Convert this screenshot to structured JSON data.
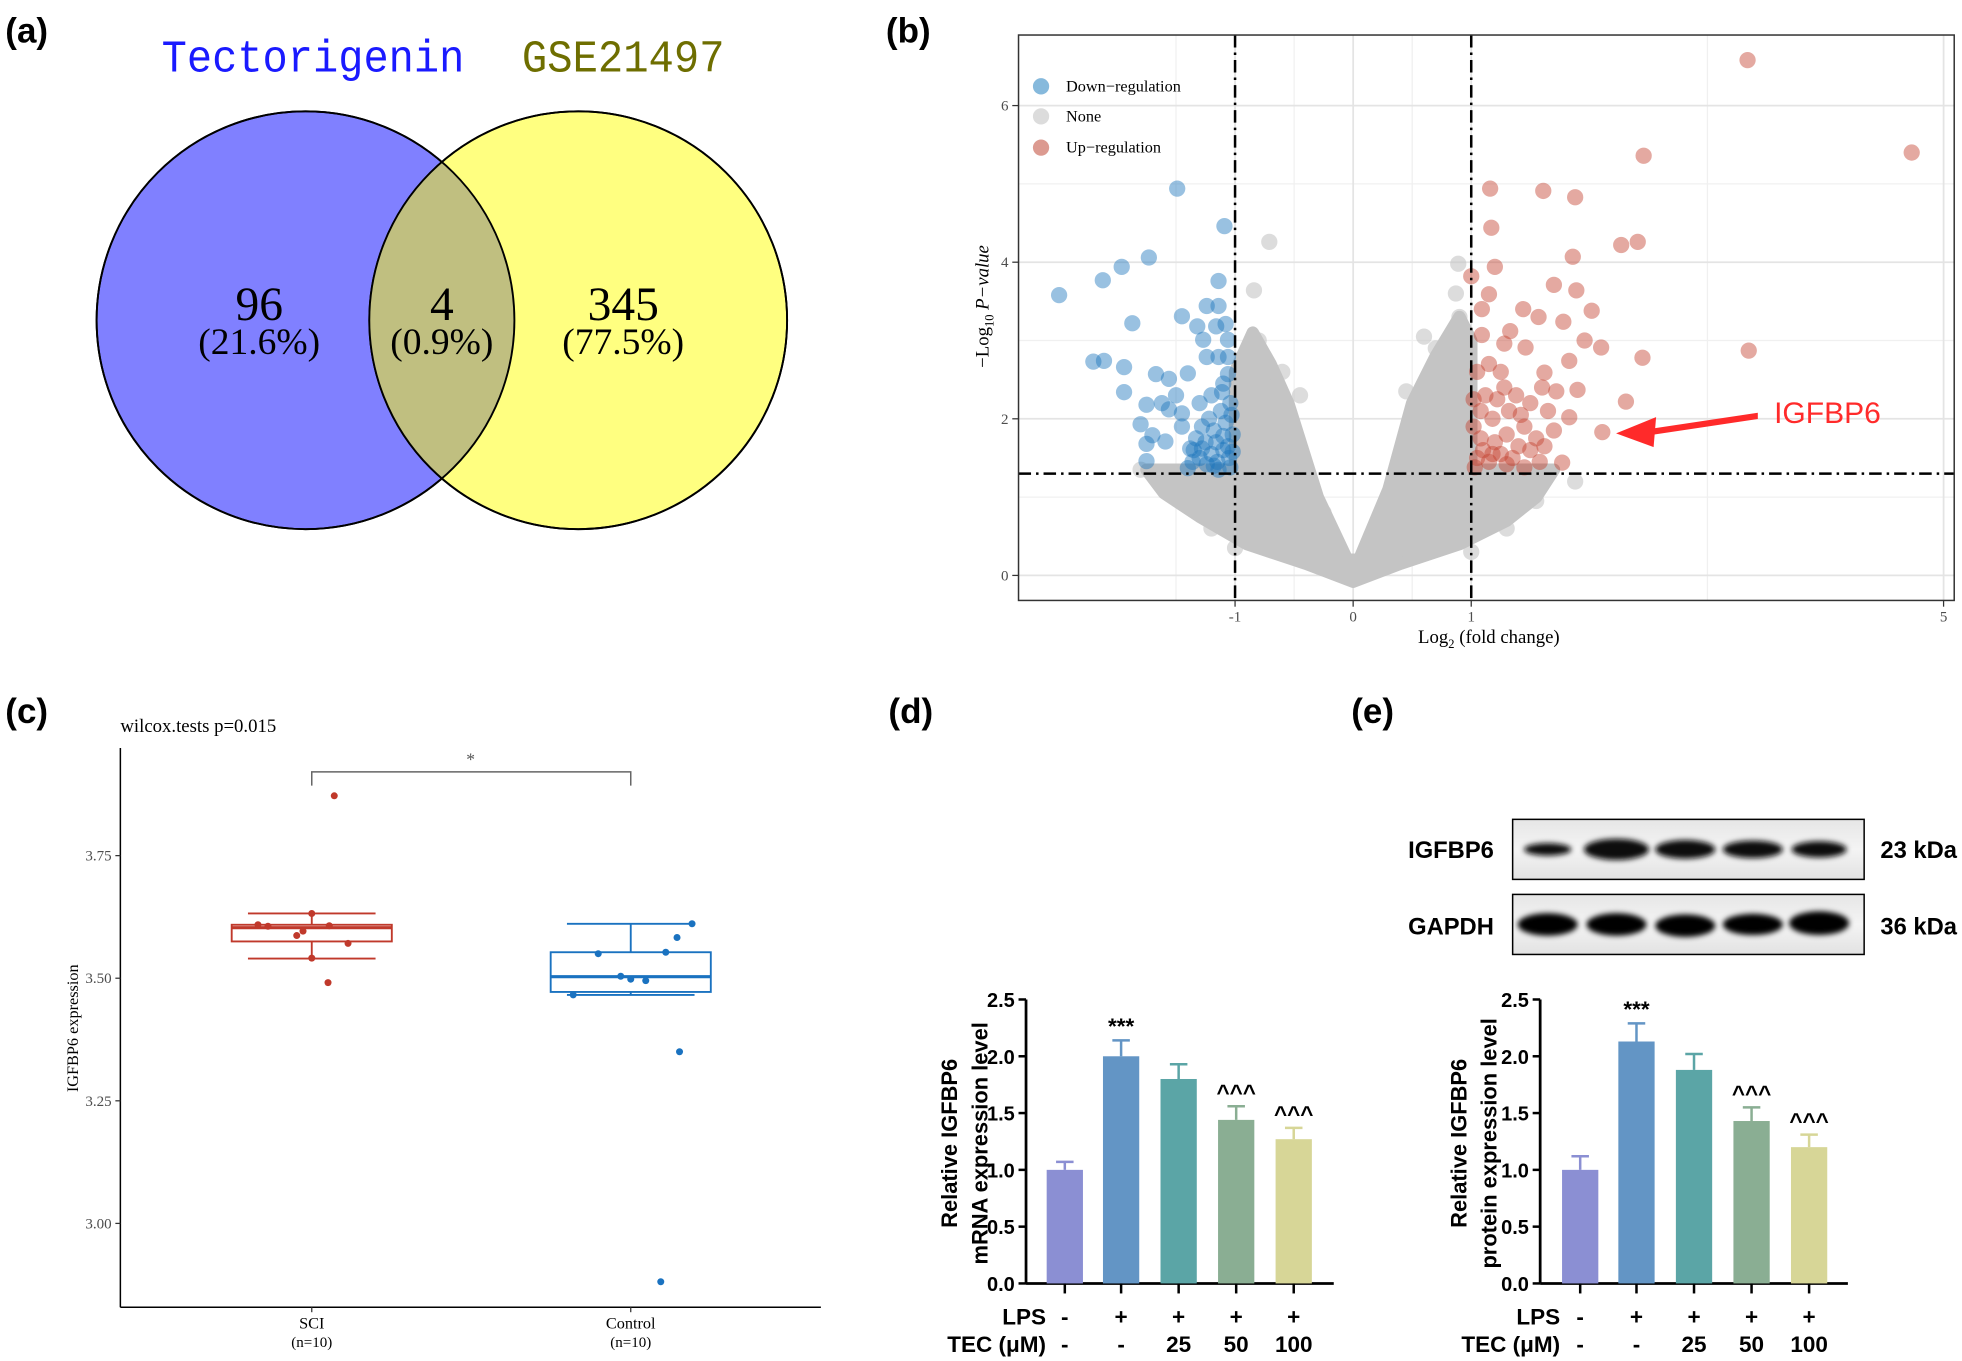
{
  "panel_labels": {
    "a": "(a)",
    "b": "(b)",
    "c": "(c)",
    "d": "(d)",
    "e": "(e)"
  },
  "chart_data": [
    {
      "panel": "a",
      "type": "venn",
      "sets": [
        {
          "name": "Tectorigenin",
          "color": "#8080ff",
          "title_color": "#1a1aff"
        },
        {
          "name": "GSE21497",
          "color": "#ffff80",
          "title_color": "#6e6e00"
        }
      ],
      "intersection_color": "#c0bf80",
      "regions": [
        {
          "label": "96",
          "percent": "(21.6%)"
        },
        {
          "label": "4",
          "percent": "(0.9%)"
        },
        {
          "label": "345",
          "percent": "(77.5%)"
        }
      ]
    },
    {
      "panel": "b",
      "type": "scatter",
      "xlabel": {
        "prefix": "Log",
        "sub": "2",
        "rest": " (fold change)"
      },
      "ylabel": {
        "prefix": "−Log",
        "sub": "10",
        "italic": " P−value"
      },
      "x_ticks": [
        "-1",
        "0",
        "1",
        "5"
      ],
      "x_tick_values": [
        -1,
        0,
        1,
        5
      ],
      "y_ticks": [
        "0",
        "2",
        "4",
        "6"
      ],
      "y_tick_values": [
        0,
        2,
        4,
        6
      ],
      "xlim": [
        -2.82,
        5.1
      ],
      "ylim": [
        -0.3,
        6.9
      ],
      "grid": true,
      "thresholds": {
        "log2fc": [
          -1,
          1
        ],
        "neg_log10_p": 1.3
      },
      "legend_position": "top-left",
      "annotation": {
        "text": "IGFBP6",
        "point": [
          2.11,
          1.83
        ],
        "color": "#ff2a2a"
      },
      "series": [
        {
          "name": "Down−regulation",
          "color": "#1c75bc",
          "legend_color": "#86b9dc",
          "points": [
            [
              -2.49,
              3.58
            ],
            [
              -2.12,
              3.77
            ],
            [
              -1.96,
              3.94
            ],
            [
              -1.73,
              4.06
            ],
            [
              -1.49,
              4.94
            ],
            [
              -1.09,
              4.46
            ],
            [
              -1.14,
              3.76
            ],
            [
              -1.45,
              3.31
            ],
            [
              -1.87,
              3.22
            ],
            [
              -1.24,
              3.44
            ],
            [
              -1.14,
              3.44
            ],
            [
              -2.2,
              2.73
            ],
            [
              -2.11,
              2.74
            ],
            [
              -1.94,
              2.66
            ],
            [
              -1.94,
              2.34
            ],
            [
              -1.67,
              2.57
            ],
            [
              -1.56,
              2.51
            ],
            [
              -1.4,
              2.58
            ],
            [
              -1.32,
              3.18
            ],
            [
              -1.27,
              3.01
            ],
            [
              -1.16,
              3.18
            ],
            [
              -1.08,
              3.21
            ],
            [
              -1.06,
              3.01
            ],
            [
              -1.24,
              2.79
            ],
            [
              -1.14,
              2.79
            ],
            [
              -1.06,
              2.79
            ],
            [
              -1.06,
              2.57
            ],
            [
              -1.11,
              2.34
            ],
            [
              -1.75,
              2.18
            ],
            [
              -1.56,
              2.12
            ],
            [
              -1.45,
              2.07
            ],
            [
              -1.8,
              1.93
            ],
            [
              -1.7,
              1.79
            ],
            [
              -1.75,
              1.68
            ],
            [
              -1.59,
              1.71
            ],
            [
              -1.75,
              1.46
            ],
            [
              -1.4,
              1.37
            ],
            [
              -1.38,
              1.62
            ],
            [
              -1.05,
              1.5
            ],
            [
              -1.1,
              1.6
            ],
            [
              -1.15,
              1.45
            ],
            [
              -1.2,
              1.55
            ],
            [
              -1.25,
              1.7
            ],
            [
              -1.3,
              1.5
            ],
            [
              -1.02,
              1.8
            ],
            [
              -1.08,
              1.95
            ],
            [
              -1.12,
              2.1
            ],
            [
              -1.18,
              1.85
            ],
            [
              -1.22,
              2.0
            ],
            [
              -1.28,
              1.9
            ],
            [
              -1.33,
              1.75
            ],
            [
              -1.35,
              1.6
            ],
            [
              -1.03,
              2.05
            ],
            [
              -1.06,
              1.65
            ],
            [
              -1.16,
              1.7
            ],
            [
              -1.24,
              1.42
            ],
            [
              -1.3,
              2.2
            ],
            [
              -1.45,
              1.9
            ],
            [
              -1.5,
              2.3
            ],
            [
              -1.62,
              2.2
            ],
            [
              -1.04,
              1.38
            ],
            [
              -1.14,
              1.35
            ],
            [
              -1.2,
              2.3
            ],
            [
              -1.1,
              2.45
            ],
            [
              -1.04,
              2.2
            ],
            [
              -1.18,
              1.4
            ],
            [
              -1.28,
              1.62
            ],
            [
              -1.1,
              1.78
            ],
            [
              -1.36,
              1.45
            ],
            [
              -1.02,
              1.58
            ]
          ]
        },
        {
          "name": "None",
          "color": "#c4c4c4",
          "legend_color": "#dcdcdc",
          "region": [
            [
              0,
              -0.08
            ],
            [
              -0.4,
              0.15
            ],
            [
              -0.9,
              0.4
            ],
            [
              -1.3,
              0.75
            ],
            [
              -1.6,
              1.05
            ],
            [
              -1.75,
              1.35
            ],
            [
              -1.0,
              1.35
            ],
            [
              -1.0,
              2.6
            ],
            [
              -0.85,
              3.1
            ],
            [
              -0.7,
              2.7
            ],
            [
              -0.55,
              2.2
            ],
            [
              -0.3,
              1.0
            ],
            [
              -0.05,
              0.2
            ],
            [
              0.05,
              0.2
            ],
            [
              0.3,
              1.1
            ],
            [
              0.5,
              2.2
            ],
            [
              0.7,
              2.8
            ],
            [
              0.9,
              3.3
            ],
            [
              1.0,
              3.0
            ],
            [
              1.0,
              1.35
            ],
            [
              1.7,
              1.35
            ],
            [
              1.55,
              1.0
            ],
            [
              1.3,
              0.7
            ],
            [
              0.9,
              0.4
            ],
            [
              0.4,
              0.15
            ]
          ],
          "points": [
            [
              -0.71,
              4.26
            ],
            [
              -0.84,
              3.64
            ],
            [
              0.89,
              3.98
            ],
            [
              0.87,
              3.6
            ],
            [
              0.9,
              3.3
            ],
            [
              0.6,
              3.05
            ],
            [
              -0.8,
              3.0
            ],
            [
              -0.82,
              2.9
            ],
            [
              -0.6,
              2.6
            ],
            [
              -0.45,
              2.3
            ],
            [
              0.45,
              2.35
            ],
            [
              0.7,
              2.9
            ],
            [
              1.88,
              1.2
            ],
            [
              1.55,
              0.95
            ],
            [
              1.5,
              1.05
            ],
            [
              -1.7,
              1.3
            ],
            [
              -1.4,
              0.9
            ],
            [
              -1.2,
              0.6
            ],
            [
              1.3,
              0.6
            ],
            [
              1.0,
              0.3
            ],
            [
              -1.0,
              0.35
            ],
            [
              -1.55,
              1.15
            ],
            [
              1.2,
              0.85
            ],
            [
              -0.9,
              1.9
            ],
            [
              0.95,
              2.5
            ],
            [
              -0.25,
              0.8
            ],
            [
              0.3,
              0.9
            ],
            [
              -1.8,
              1.35
            ],
            [
              1.35,
              1.25
            ],
            [
              -0.9,
              0.6
            ]
          ]
        },
        {
          "name": "Up−regulation",
          "color": "#c4402f",
          "legend_color": "#dc9a90",
          "points": [
            [
              3.34,
              6.58
            ],
            [
              4.73,
              5.4
            ],
            [
              2.46,
              5.36
            ],
            [
              1.16,
              4.94
            ],
            [
              1.61,
              4.91
            ],
            [
              1.88,
              4.83
            ],
            [
              1.17,
              4.44
            ],
            [
              2.27,
              4.22
            ],
            [
              2.41,
              4.26
            ],
            [
              1.86,
              4.07
            ],
            [
              1.2,
              3.94
            ],
            [
              1.0,
              3.82
            ],
            [
              1.7,
              3.71
            ],
            [
              1.89,
              3.64
            ],
            [
              1.15,
              3.59
            ],
            [
              1.44,
              3.4
            ],
            [
              1.57,
              3.3
            ],
            [
              2.02,
              3.38
            ],
            [
              1.78,
              3.24
            ],
            [
              1.09,
              3.4
            ],
            [
              3.35,
              2.87
            ],
            [
              2.45,
              2.78
            ],
            [
              2.1,
              2.91
            ],
            [
              1.96,
              3.0
            ],
            [
              1.46,
              2.91
            ],
            [
              1.83,
              2.74
            ],
            [
              1.33,
              3.12
            ],
            [
              1.28,
              2.96
            ],
            [
              1.09,
              3.07
            ],
            [
              1.62,
              2.59
            ],
            [
              1.9,
              2.37
            ],
            [
              2.31,
              2.22
            ],
            [
              1.83,
              2.02
            ],
            [
              2.11,
              1.83
            ],
            [
              1.77,
              1.44
            ],
            [
              1.05,
              1.5
            ],
            [
              1.1,
              1.6
            ],
            [
              1.15,
              1.45
            ],
            [
              1.2,
              1.7
            ],
            [
              1.25,
              1.55
            ],
            [
              1.3,
              1.8
            ],
            [
              1.35,
              1.5
            ],
            [
              1.4,
              1.65
            ],
            [
              1.45,
              1.9
            ],
            [
              1.5,
              1.6
            ],
            [
              1.55,
              1.75
            ],
            [
              1.02,
              1.9
            ],
            [
              1.08,
              2.1
            ],
            [
              1.12,
              2.3
            ],
            [
              1.18,
              2.0
            ],
            [
              1.22,
              2.25
            ],
            [
              1.28,
              2.4
            ],
            [
              1.32,
              2.1
            ],
            [
              1.38,
              2.3
            ],
            [
              1.42,
              2.05
            ],
            [
              1.5,
              2.2
            ],
            [
              1.6,
              2.4
            ],
            [
              1.65,
              2.1
            ],
            [
              1.7,
              1.85
            ],
            [
              1.58,
              1.45
            ],
            [
              1.05,
              2.6
            ],
            [
              1.15,
              2.7
            ],
            [
              1.25,
              2.6
            ],
            [
              1.03,
              1.38
            ],
            [
              1.45,
              1.38
            ],
            [
              1.62,
              1.65
            ],
            [
              1.72,
              2.35
            ],
            [
              1.08,
              1.75
            ],
            [
              1.18,
              1.55
            ],
            [
              1.3,
              1.42
            ],
            [
              1.02,
              2.25
            ]
          ]
        }
      ]
    },
    {
      "panel": "c",
      "type": "box",
      "title": "wilcox.tests p=0.015",
      "ylabel": "IGFBP6 expression",
      "y_ticks": [
        "3.00",
        "3.25",
        "3.50",
        "3.75"
      ],
      "y_tick_values": [
        3.0,
        3.25,
        3.5,
        3.75
      ],
      "significance": "*",
      "groups": [
        {
          "name": "SCI",
          "n_label": "(n=10)",
          "color": "#c0392b",
          "whisker_low": 3.54,
          "q1": 3.575,
          "median": 3.603,
          "q3": 3.609,
          "whisker_high": 3.632,
          "points": [
            3.872,
            3.632,
            3.609,
            3.606,
            3.607,
            3.596,
            3.587,
            3.571,
            3.541,
            3.491
          ]
        },
        {
          "name": "Control",
          "n_label": "(n=10)",
          "color": "#1a72c0",
          "whisker_low": 3.466,
          "q1": 3.472,
          "median": 3.503,
          "q3": 3.553,
          "whisker_high": 3.611,
          "points": [
            3.611,
            3.583,
            3.55,
            3.553,
            3.504,
            3.498,
            3.495,
            3.466,
            3.35,
            2.881
          ]
        }
      ]
    },
    {
      "panel": "d",
      "type": "bar",
      "ylabel_lines": [
        "Relative IGFBP6",
        "mRNA expression level"
      ],
      "ylim": [
        0,
        2.5
      ],
      "y_ticks": [
        "0.0",
        "0.5",
        "1.0",
        "1.5",
        "2.0",
        "2.5"
      ],
      "row_labels": [
        "LPS",
        "TEC (μM)"
      ],
      "lps": [
        "-",
        "+",
        "+",
        "+",
        "+"
      ],
      "tec": [
        "-",
        "-",
        "25",
        "50",
        "100"
      ],
      "values": [
        1.0,
        2.0,
        1.8,
        1.44,
        1.27
      ],
      "errors_upper": [
        1.07,
        2.14,
        1.93,
        1.56,
        1.37
      ],
      "annotations": [
        "",
        "***",
        "",
        "^^^",
        "^^^"
      ],
      "colors": [
        "#8b8fd3",
        "#6395c5",
        "#5ba5a6",
        "#8aae93",
        "#d7d697"
      ]
    },
    {
      "panel": "e",
      "type": "bar",
      "ylabel_lines": [
        "Relative IGFBP6",
        "protein expression level"
      ],
      "ylim": [
        0,
        2.5
      ],
      "y_ticks": [
        "0.0",
        "0.5",
        "1.0",
        "1.5",
        "2.0",
        "2.5"
      ],
      "row_labels": [
        "LPS",
        "TEC (μM)"
      ],
      "lps": [
        "-",
        "+",
        "+",
        "+",
        "+"
      ],
      "tec": [
        "-",
        "-",
        "25",
        "50",
        "100"
      ],
      "values": [
        1.0,
        2.13,
        1.88,
        1.43,
        1.2
      ],
      "errors_upper": [
        1.12,
        2.29,
        2.02,
        1.55,
        1.31
      ],
      "annotations": [
        "",
        "***",
        "",
        "^^^",
        "^^^"
      ],
      "colors": [
        "#8b8fd3",
        "#6395c5",
        "#5ba5a6",
        "#8aae93",
        "#d7d697"
      ]
    }
  ],
  "western_blot": {
    "rows": [
      {
        "protein": "IGFBP6",
        "size": "23 kDa"
      },
      {
        "protein": "GAPDH",
        "size": "36 kDa"
      }
    ]
  }
}
